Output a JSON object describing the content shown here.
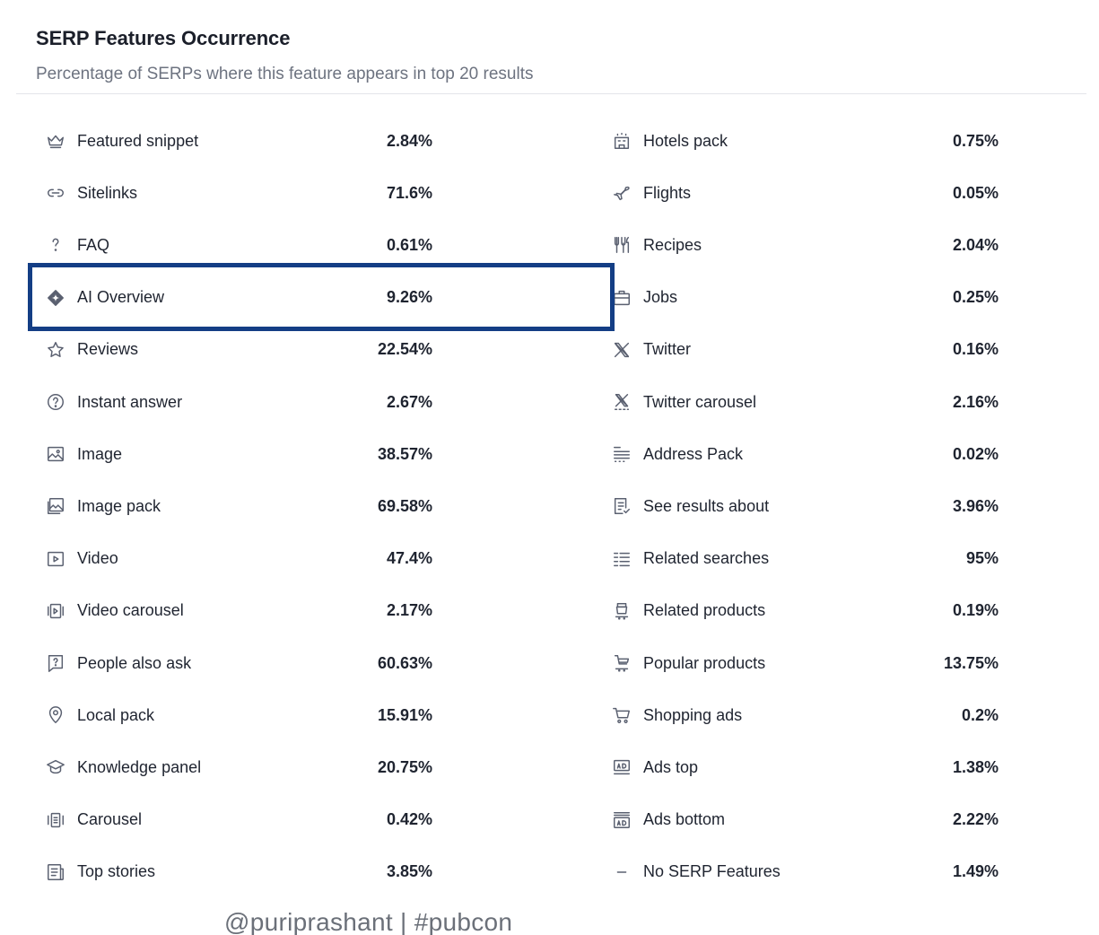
{
  "panel": {
    "title": "SERP Features Occurrence",
    "subtitle": "Percentage of SERPs where this feature appears in top 20 results"
  },
  "left": [
    {
      "label": "Featured snippet",
      "value": "2.84%",
      "icon": "crown-icon"
    },
    {
      "label": "Sitelinks",
      "value": "71.6%",
      "icon": "link-icon"
    },
    {
      "label": "FAQ",
      "value": "0.61%",
      "icon": "question-icon"
    },
    {
      "label": "AI Overview",
      "value": "9.26%",
      "icon": "ai-sparkle-icon"
    },
    {
      "label": "Reviews",
      "value": "22.54%",
      "icon": "star-icon"
    },
    {
      "label": "Instant answer",
      "value": "2.67%",
      "icon": "question-circle-icon"
    },
    {
      "label": "Image",
      "value": "38.57%",
      "icon": "image-icon"
    },
    {
      "label": "Image pack",
      "value": "69.58%",
      "icon": "image-pack-icon"
    },
    {
      "label": "Video",
      "value": "47.4%",
      "icon": "video-icon"
    },
    {
      "label": "Video carousel",
      "value": "2.17%",
      "icon": "video-carousel-icon"
    },
    {
      "label": "People also ask",
      "value": "60.63%",
      "icon": "question-bubble-icon"
    },
    {
      "label": "Local pack",
      "value": "15.91%",
      "icon": "location-pin-icon"
    },
    {
      "label": "Knowledge panel",
      "value": "20.75%",
      "icon": "graduation-cap-icon"
    },
    {
      "label": "Carousel",
      "value": "0.42%",
      "icon": "carousel-icon"
    },
    {
      "label": "Top stories",
      "value": "3.85%",
      "icon": "newspaper-icon"
    }
  ],
  "right": [
    {
      "label": "Hotels pack",
      "value": "0.75%",
      "icon": "hotel-icon"
    },
    {
      "label": "Flights",
      "value": "0.05%",
      "icon": "plane-icon"
    },
    {
      "label": "Recipes",
      "value": "2.04%",
      "icon": "fork-knife-icon"
    },
    {
      "label": "Jobs",
      "value": "0.25%",
      "icon": "briefcase-icon"
    },
    {
      "label": "Twitter",
      "value": "0.16%",
      "icon": "x-logo-icon"
    },
    {
      "label": "Twitter carousel",
      "value": "2.16%",
      "icon": "x-carousel-icon"
    },
    {
      "label": "Address Pack",
      "value": "0.02%",
      "icon": "address-list-icon"
    },
    {
      "label": "See results about",
      "value": "3.96%",
      "icon": "document-check-icon"
    },
    {
      "label": "Related searches",
      "value": "95%",
      "icon": "list-icon"
    },
    {
      "label": "Related products",
      "value": "0.19%",
      "icon": "product-icon"
    },
    {
      "label": "Popular products",
      "value": "13.75%",
      "icon": "cart-stack-icon"
    },
    {
      "label": "Shopping ads",
      "value": "0.2%",
      "icon": "shopping-cart-icon"
    },
    {
      "label": "Ads top",
      "value": "1.38%",
      "icon": "ad-top-icon"
    },
    {
      "label": "Ads bottom",
      "value": "2.22%",
      "icon": "ad-bottom-icon"
    },
    {
      "label": "No SERP Features",
      "value": "1.49%",
      "icon": "dash-icon"
    }
  ],
  "watermark": "@puriprashant | #pubcon"
}
